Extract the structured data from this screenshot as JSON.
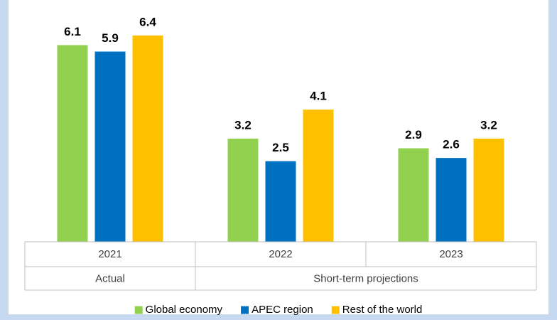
{
  "chart_data": {
    "type": "bar",
    "groups": [
      {
        "name": "Actual",
        "categories": [
          "2021"
        ]
      },
      {
        "name": "Short-term projections",
        "categories": [
          "2022",
          "2023"
        ]
      }
    ],
    "series": [
      {
        "name": "Global economy",
        "color": "#92d050",
        "values": [
          6.1,
          3.2,
          2.9
        ]
      },
      {
        "name": "APEC region",
        "color": "#0070c0",
        "values": [
          5.9,
          2.5,
          2.6
        ]
      },
      {
        "name": "Rest of the world",
        "color": "#ffc000",
        "values": [
          6.4,
          4.1,
          3.2
        ]
      }
    ],
    "ylim": [
      0,
      7.5
    ],
    "legend": "bottom"
  }
}
